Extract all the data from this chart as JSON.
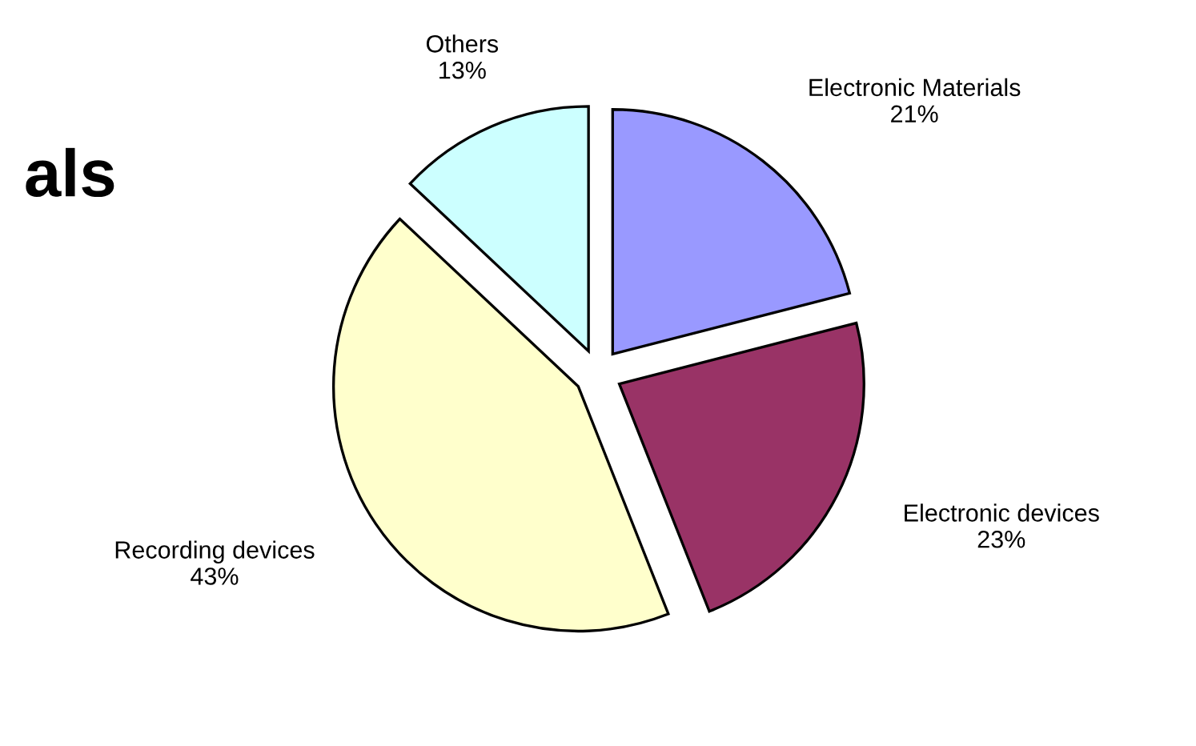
{
  "chart_data": {
    "type": "pie",
    "title": "als",
    "categories": [
      "Electronic Materials",
      "Electronic devices",
      "Recording devices",
      "Others"
    ],
    "values": [
      21,
      23,
      43,
      13
    ],
    "colors": [
      "#9999ff",
      "#993366",
      "#ffffcc",
      "#ccffff"
    ],
    "value_labels": [
      "21%",
      "23%",
      "43%",
      "13%"
    ]
  }
}
